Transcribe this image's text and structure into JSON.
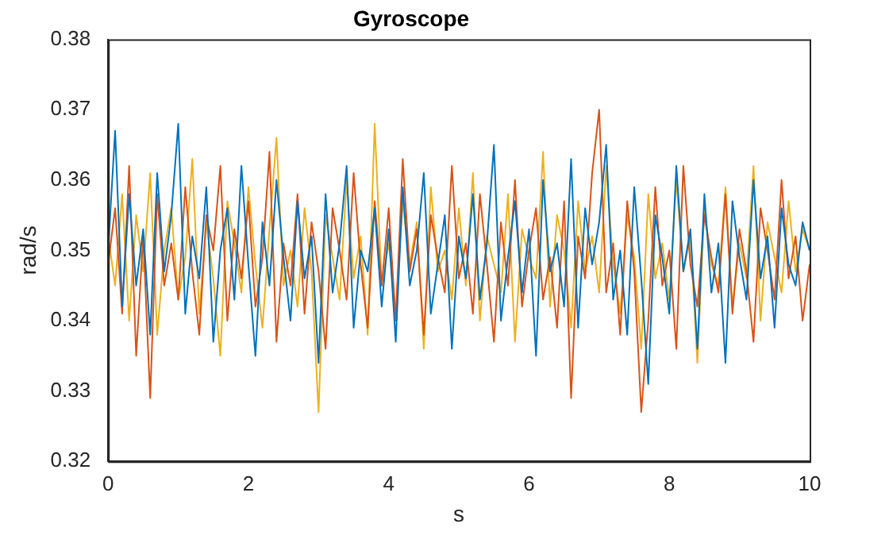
{
  "chart_data": {
    "type": "line",
    "title": "Gyroscope",
    "xlabel": "s",
    "ylabel": "rad/s",
    "xlim": [
      0,
      10
    ],
    "xticks": [
      0,
      2,
      4,
      6,
      8,
      10
    ],
    "ylim": [
      0.32,
      0.38
    ],
    "yticks": [
      0.32,
      0.33,
      0.34,
      0.35,
      0.36,
      0.37,
      0.38
    ],
    "grid": false,
    "legend": false,
    "marker": "none",
    "line_style": "solid",
    "x": [
      0,
      0.1,
      0.2,
      0.3,
      0.4,
      0.5,
      0.6,
      0.7,
      0.8,
      0.9,
      1,
      1.1,
      1.2,
      1.3,
      1.4,
      1.5,
      1.6,
      1.7,
      1.8,
      1.9,
      2,
      2.1,
      2.2,
      2.3,
      2.4,
      2.5,
      2.6,
      2.7,
      2.8,
      2.9,
      3,
      3.1,
      3.2,
      3.3,
      3.4,
      3.5,
      3.6,
      3.7,
      3.8,
      3.9,
      4,
      4.1,
      4.2,
      4.3,
      4.4,
      4.5,
      4.6,
      4.7,
      4.8,
      4.9,
      5,
      5.1,
      5.2,
      5.3,
      5.4,
      5.5,
      5.6,
      5.7,
      5.8,
      5.9,
      6,
      6.1,
      6.2,
      6.3,
      6.4,
      6.5,
      6.6,
      6.7,
      6.8,
      6.9,
      7,
      7.1,
      7.2,
      7.3,
      7.4,
      7.5,
      7.6,
      7.7,
      7.8,
      7.9,
      8,
      8.1,
      8.2,
      8.3,
      8.4,
      8.5,
      8.6,
      8.7,
      8.8,
      8.9,
      9,
      9.1,
      9.2,
      9.3,
      9.4,
      9.5,
      9.6,
      9.7,
      9.8,
      9.9,
      10
    ],
    "series": [
      {
        "color": "#0072bd",
        "values": [
          0.35,
          0.367,
          0.342,
          0.358,
          0.345,
          0.353,
          0.338,
          0.361,
          0.347,
          0.355,
          0.368,
          0.341,
          0.352,
          0.346,
          0.359,
          0.337,
          0.35,
          0.356,
          0.343,
          0.362,
          0.348,
          0.335,
          0.354,
          0.345,
          0.36,
          0.349,
          0.34,
          0.357,
          0.346,
          0.352,
          0.334,
          0.358,
          0.344,
          0.351,
          0.362,
          0.339,
          0.35,
          0.347,
          0.356,
          0.342,
          0.353,
          0.337,
          0.359,
          0.345,
          0.35,
          0.361,
          0.341,
          0.348,
          0.355,
          0.336,
          0.352,
          0.346,
          0.358,
          0.343,
          0.351,
          0.365,
          0.34,
          0.349,
          0.357,
          0.344,
          0.353,
          0.335,
          0.36,
          0.347,
          0.351,
          0.342,
          0.363,
          0.339,
          0.356,
          0.348,
          0.354,
          0.365,
          0.343,
          0.35,
          0.338,
          0.359,
          0.346,
          0.331,
          0.355,
          0.349,
          0.341,
          0.362,
          0.347,
          0.353,
          0.336,
          0.358,
          0.344,
          0.351,
          0.334,
          0.357,
          0.349,
          0.343,
          0.36,
          0.346,
          0.352,
          0.339,
          0.356,
          0.348,
          0.345,
          0.354,
          0.35
        ]
      },
      {
        "color": "#d95319",
        "values": [
          0.348,
          0.356,
          0.341,
          0.362,
          0.335,
          0.352,
          0.329,
          0.358,
          0.345,
          0.351,
          0.343,
          0.359,
          0.347,
          0.338,
          0.355,
          0.35,
          0.362,
          0.34,
          0.353,
          0.346,
          0.357,
          0.342,
          0.349,
          0.364,
          0.337,
          0.351,
          0.345,
          0.358,
          0.341,
          0.354,
          0.347,
          0.336,
          0.356,
          0.35,
          0.343,
          0.361,
          0.348,
          0.339,
          0.357,
          0.345,
          0.356,
          0.34,
          0.363,
          0.347,
          0.353,
          0.338,
          0.355,
          0.349,
          0.344,
          0.362,
          0.346,
          0.351,
          0.341,
          0.358,
          0.348,
          0.337,
          0.354,
          0.345,
          0.36,
          0.342,
          0.35,
          0.356,
          0.343,
          0.349,
          0.339,
          0.357,
          0.329,
          0.352,
          0.346,
          0.361,
          0.37,
          0.344,
          0.351,
          0.338,
          0.357,
          0.347,
          0.327,
          0.34,
          0.359,
          0.345,
          0.35,
          0.336,
          0.362,
          0.348,
          0.342,
          0.355,
          0.349,
          0.344,
          0.358,
          0.341,
          0.353,
          0.347,
          0.337,
          0.356,
          0.35,
          0.343,
          0.36,
          0.346,
          0.352,
          0.34,
          0.348
        ]
      },
      {
        "color": "#edb120",
        "values": [
          0.352,
          0.345,
          0.358,
          0.34,
          0.355,
          0.347,
          0.361,
          0.338,
          0.35,
          0.356,
          0.343,
          0.349,
          0.363,
          0.341,
          0.354,
          0.346,
          0.335,
          0.357,
          0.351,
          0.344,
          0.359,
          0.348,
          0.339,
          0.353,
          0.366,
          0.345,
          0.35,
          0.342,
          0.356,
          0.347,
          0.327,
          0.355,
          0.349,
          0.343,
          0.36,
          0.346,
          0.352,
          0.338,
          0.368,
          0.345,
          0.351,
          0.341,
          0.357,
          0.348,
          0.354,
          0.336,
          0.359,
          0.347,
          0.35,
          0.343,
          0.356,
          0.345,
          0.361,
          0.34,
          0.352,
          0.348,
          0.344,
          0.358,
          0.337,
          0.353,
          0.349,
          0.346,
          0.364,
          0.342,
          0.355,
          0.35,
          0.339,
          0.357,
          0.347,
          0.352,
          0.344,
          0.362,
          0.348,
          0.341,
          0.355,
          0.349,
          0.336,
          0.358,
          0.346,
          0.351,
          0.343,
          0.36,
          0.347,
          0.352,
          0.334,
          0.356,
          0.348,
          0.345,
          0.359,
          0.342,
          0.351,
          0.346,
          0.362,
          0.34,
          0.354,
          0.349,
          0.344,
          0.357,
          0.347,
          0.353,
          0.35
        ]
      }
    ]
  }
}
